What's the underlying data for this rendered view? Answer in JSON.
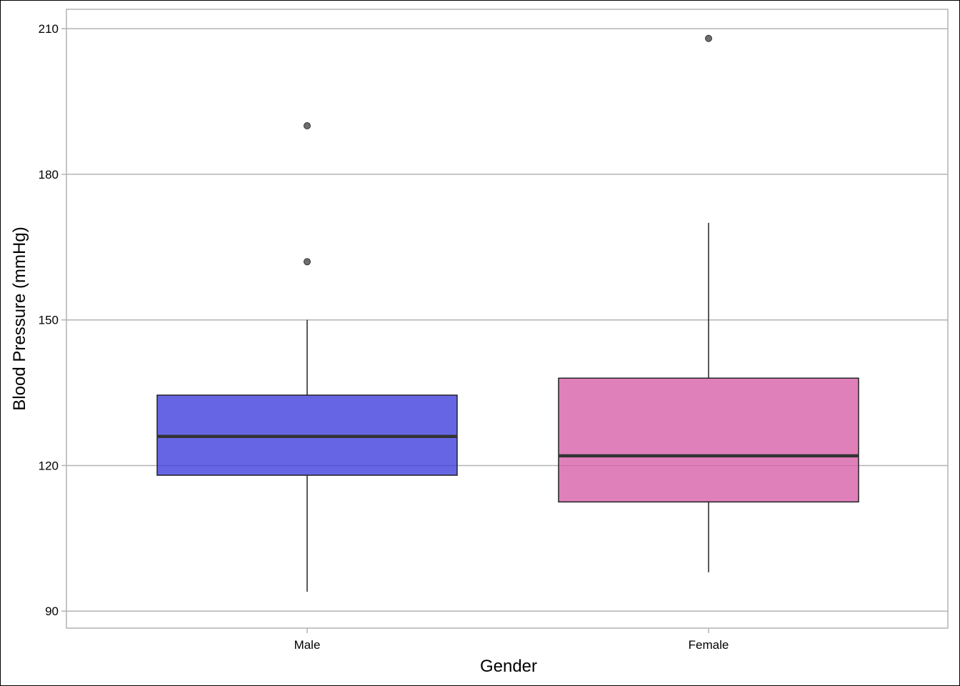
{
  "chart_data": {
    "type": "boxplot",
    "title": "",
    "xlabel": "Gender",
    "ylabel": "Blood Pressure (mmHg)",
    "ylim": [
      86.5,
      214
    ],
    "yticks": [
      90,
      120,
      150,
      180,
      210
    ],
    "ytick_labels": [
      "90",
      "120",
      "150",
      "180",
      "210"
    ],
    "categories": [
      "Male",
      "Female"
    ],
    "grid": "horizontal",
    "legend": "none",
    "boxes": [
      {
        "category": "Male",
        "whisker_low": 94,
        "q1": 118,
        "median": 126,
        "q3": 134.5,
        "whisker_high": 150,
        "outliers": [
          162,
          190
        ],
        "color": "#4040dd"
      },
      {
        "category": "Female",
        "whisker_low": 98,
        "q1": 112.5,
        "median": 122,
        "q3": 138,
        "whisker_high": 170,
        "outliers": [
          208
        ],
        "color": "#d860aa"
      }
    ]
  }
}
